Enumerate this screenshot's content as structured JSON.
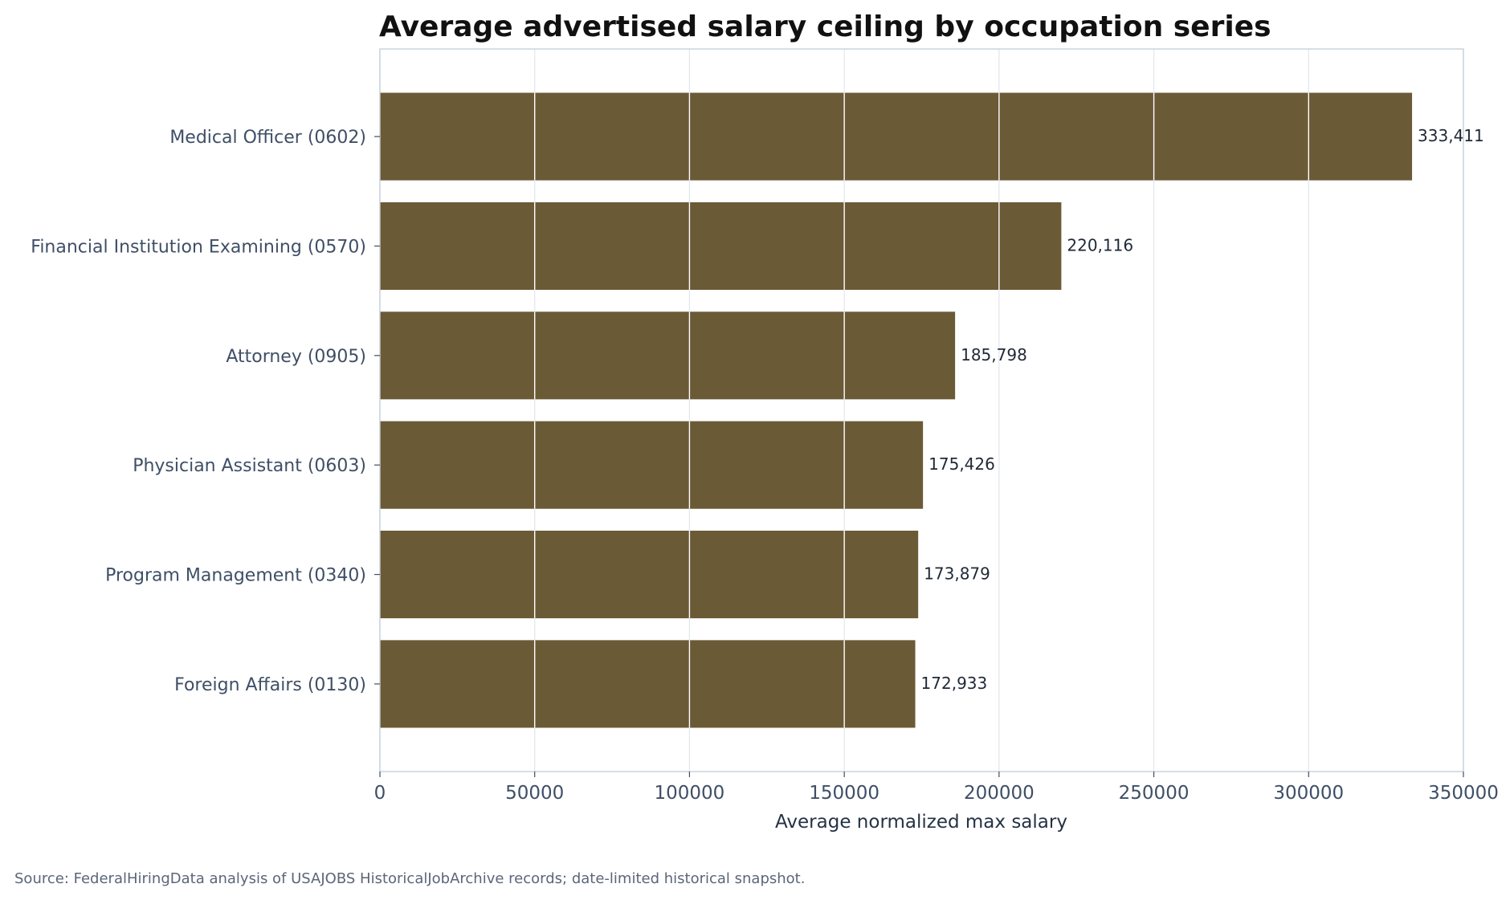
{
  "chart_data": {
    "type": "bar",
    "orientation": "horizontal",
    "title": "Average advertised salary ceiling by occupation series",
    "xlabel": "Average normalized max salary",
    "ylabel": "",
    "categories": [
      "Medical Officer (0602)",
      "Financial Institution Examining (0570)",
      "Attorney (0905)",
      "Physician Assistant (0603)",
      "Program Management (0340)",
      "Foreign Affairs (0130)"
    ],
    "values": [
      333411,
      220116,
      185798,
      175426,
      173879,
      172933
    ],
    "value_labels": [
      "333,411",
      "220,116",
      "185,798",
      "175,426",
      "173,879",
      "172,933"
    ],
    "xlim": [
      0,
      350000
    ],
    "x_ticks": [
      0,
      50000,
      100000,
      150000,
      200000,
      250000,
      300000,
      350000
    ],
    "x_tick_labels": [
      "0",
      "50000",
      "100000",
      "150000",
      "200000",
      "250000",
      "300000",
      "350000"
    ],
    "grid": "vertical",
    "bar_color": "#6b5a36",
    "grid_color": "#e3e8ee",
    "frame_color": "#c5d1dc",
    "source_note": "Source: FederalHiringData analysis of USAJOBS HistoricalJobArchive records; date-limited historical snapshot."
  }
}
